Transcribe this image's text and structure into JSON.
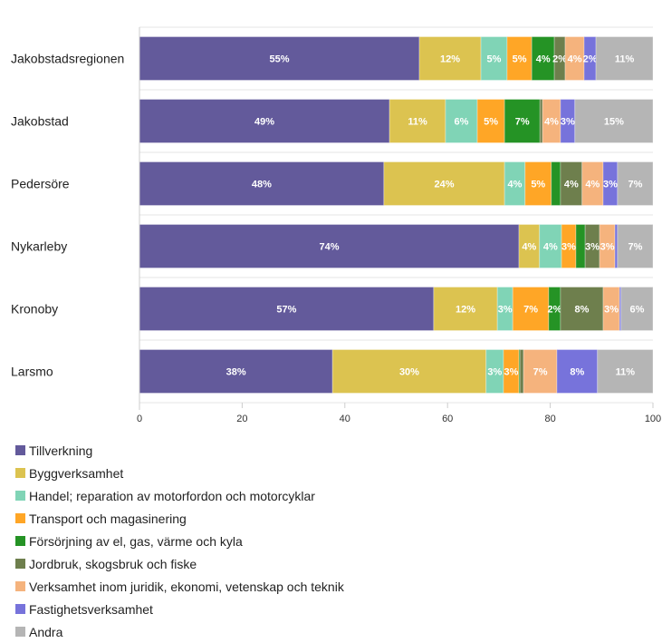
{
  "chart_data": {
    "type": "bar",
    "orientation": "horizontal",
    "stacked": true,
    "categories": [
      "Jakobstadsregionen",
      "Jakobstad",
      "Pedersöre",
      "Nykarleby",
      "Kronoby",
      "Larsmo"
    ],
    "xlim": [
      0,
      100
    ],
    "xticks": [
      "0",
      "20",
      "40",
      "60",
      "80",
      "100"
    ],
    "legend_position": "bottom-left",
    "series": [
      {
        "name": "Tillverkning",
        "color": "#635a9b",
        "values": [
          54.5,
          48.7,
          47.6,
          73.9,
          57.3,
          37.6
        ]
      },
      {
        "name": "Byggverksamhet",
        "color": "#dcc350",
        "values": [
          12.0,
          10.9,
          23.5,
          4.0,
          12.4,
          29.9
        ]
      },
      {
        "name": "Handel; reparation av motorfordon och motorcyklar",
        "color": "#80d4b6",
        "values": [
          5.1,
          6.2,
          4.0,
          4.3,
          3.0,
          3.4
        ]
      },
      {
        "name": "Transport och magasinering",
        "color": "#ffa626",
        "values": [
          4.8,
          5.3,
          5.1,
          2.8,
          7.0,
          3.0
        ]
      },
      {
        "name": "Försörjning av el, gas, värme och kyla",
        "color": "#259325",
        "values": [
          4.4,
          6.9,
          1.8,
          1.8,
          2.3,
          0.2
        ]
      },
      {
        "name": "Jordbruk, skogsbruk och fiske",
        "color": "#6e7f4d",
        "values": [
          2.1,
          0.5,
          4.2,
          2.8,
          8.3,
          0.7
        ]
      },
      {
        "name": "Verksamhet inom juridik, ekonomi, vetenskap och teknik",
        "color": "#f5b37d",
        "values": [
          3.7,
          3.5,
          4.1,
          3.0,
          3.2,
          6.5
        ]
      },
      {
        "name": "Fastighetsverksamhet",
        "color": "#7773db",
        "values": [
          2.3,
          2.8,
          2.8,
          0.5,
          0.3,
          7.9
        ]
      },
      {
        "name": "Andra",
        "color": "#b5b5b5",
        "values": [
          11.1,
          15.2,
          6.9,
          6.9,
          6.2,
          10.8
        ]
      }
    ]
  }
}
